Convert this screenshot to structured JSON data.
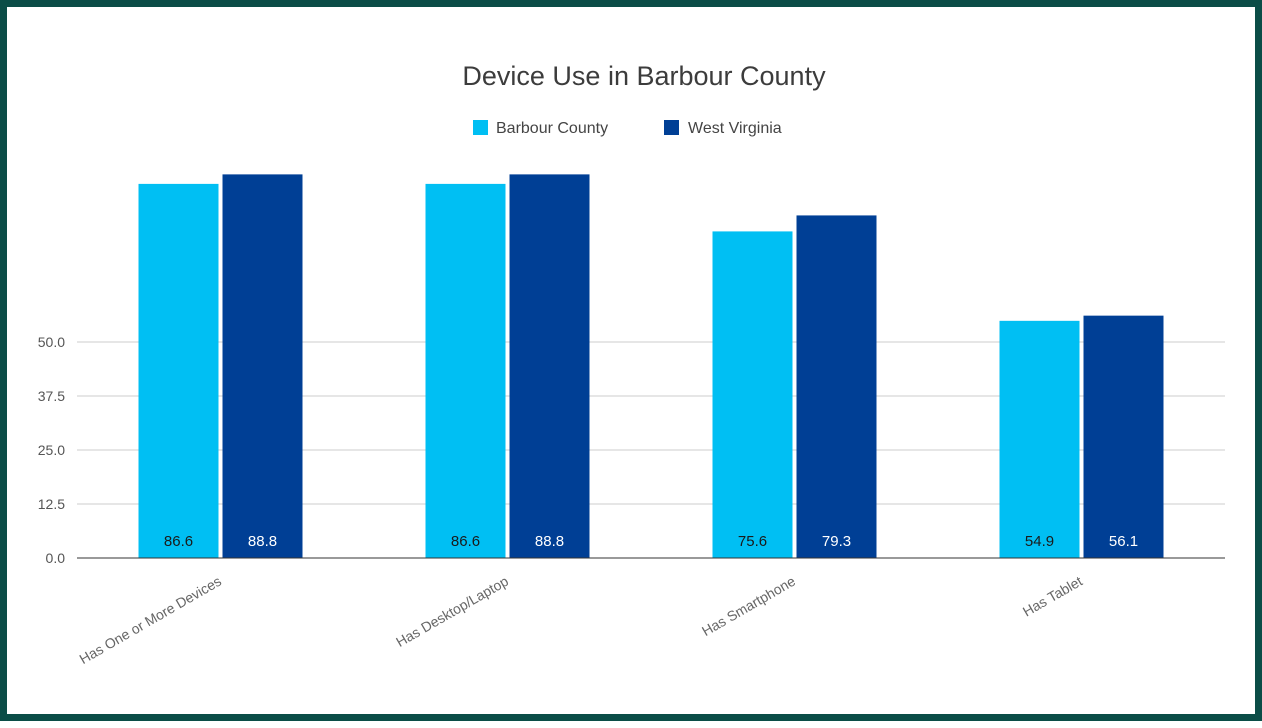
{
  "chart_data": {
    "type": "bar",
    "title": "Device Use in Barbour County",
    "categories": [
      "Has One or More Devices",
      "Has Desktop/Laptop",
      "Has Smartphone",
      "Has Tablet"
    ],
    "series": [
      {
        "name": "Barbour County",
        "values": [
          86.6,
          86.6,
          75.6,
          54.9
        ],
        "color": "#00bff3"
      },
      {
        "name": "West Virginia",
        "values": [
          88.8,
          88.8,
          79.3,
          56.1
        ],
        "color": "#003f95"
      }
    ],
    "yticks": [
      "0.0",
      "12.5",
      "25.0",
      "37.5",
      "50.0"
    ],
    "ylim": [
      0,
      100
    ],
    "grid": true,
    "legend_position": "top",
    "value_label_colors": [
      "#1a1a1a",
      "#ffffff"
    ]
  }
}
